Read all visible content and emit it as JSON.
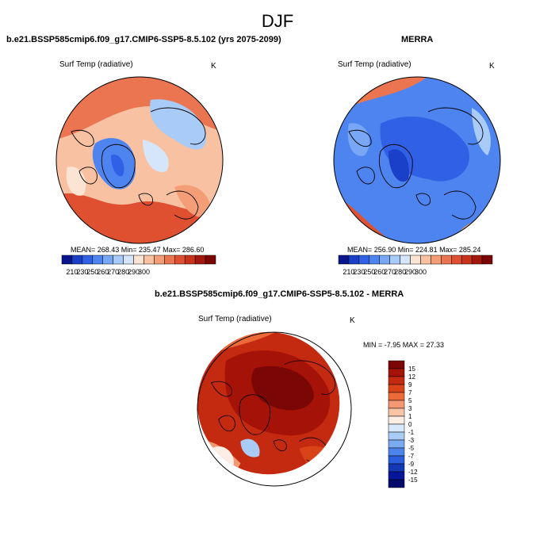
{
  "page": {
    "season": "DJF",
    "colors": {
      "ocean_light": "#f7f7f7",
      "outline": "#000000"
    }
  },
  "chart_data": [
    {
      "type": "heatmap",
      "title": "b.e21.BSSP585cmip6.f09_g17.CMIP6-SSP5-8.5.102 (yrs 2075-2099)",
      "subtitle": "Surf Temp (radiative)",
      "units": "K",
      "projection": "north polar stereographic",
      "stats": "MEAN= 268.43  Min= 235.47  Max= 286.60",
      "levels": [
        210,
        230,
        250,
        260,
        270,
        280,
        290,
        300
      ],
      "colors": [
        "#08158c",
        "#1a3fc9",
        "#2f60e6",
        "#4d84f0",
        "#77a7f5",
        "#a8cbf7",
        "#d6e6fa",
        "#fbe4d3",
        "#f8c2a2",
        "#f39e77",
        "#ea7550",
        "#de5030",
        "#c8331a",
        "#a4170c",
        "#7a0705"
      ]
    },
    {
      "type": "heatmap",
      "title": "MERRA",
      "subtitle": "Surf Temp (radiative)",
      "units": "K",
      "projection": "north polar stereographic",
      "stats": "MEAN= 256.90  Min= 224.81  Max= 285.24",
      "levels": [
        210,
        230,
        250,
        260,
        270,
        280,
        290,
        300
      ],
      "colors": [
        "#08158c",
        "#1a3fc9",
        "#2f60e6",
        "#4d84f0",
        "#77a7f5",
        "#a8cbf7",
        "#d6e6fa",
        "#fbe4d3",
        "#f8c2a2",
        "#f39e77",
        "#ea7550",
        "#de5030",
        "#c8331a",
        "#a4170c",
        "#7a0705"
      ]
    },
    {
      "type": "heatmap",
      "title": "b.e21.BSSP585cmip6.f09_g17.CMIP6-SSP5-8.5.102 - MERRA",
      "subtitle": "Surf Temp (radiative)",
      "units": "K",
      "projection": "north polar stereographic",
      "stats": "MIN =  -7.95 MAX =  27.33",
      "levels": [
        "15",
        "12",
        "9",
        "7",
        "5",
        "3",
        "1",
        "0",
        "-1",
        "-3",
        "-5",
        "-7",
        "-9",
        "-12",
        "-15"
      ],
      "colors": [
        "#7a0705",
        "#a51208",
        "#c42a10",
        "#d94318",
        "#eb6a38",
        "#f39873",
        "#fac4a6",
        "#fdeee5",
        "#d8e8fb",
        "#a9ccf6",
        "#7ba9f2",
        "#4d84ea",
        "#2b5edc",
        "#1437b5",
        "#06169a",
        "#020b6b"
      ]
    }
  ]
}
